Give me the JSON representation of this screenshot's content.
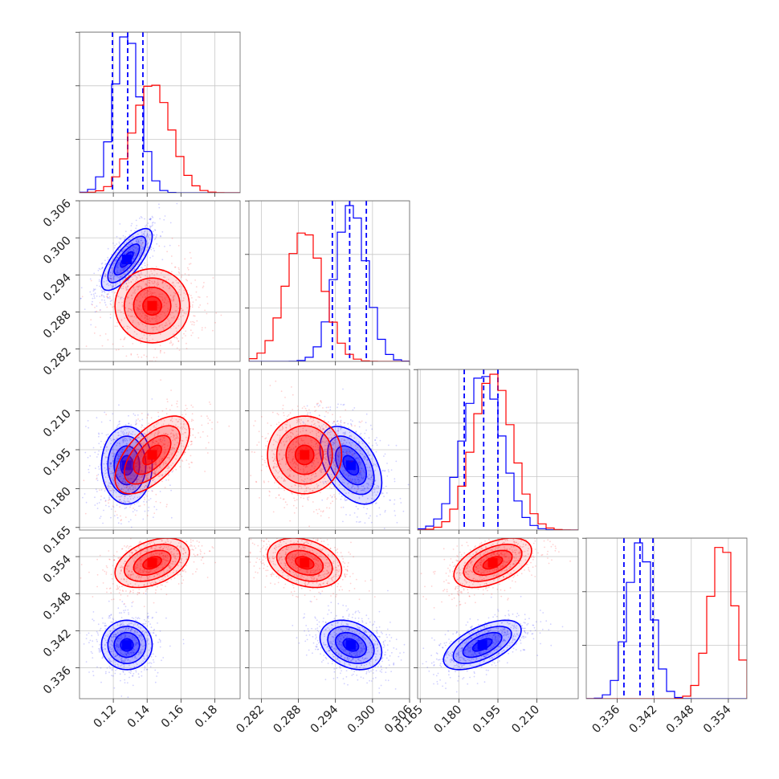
{
  "chart_data": {
    "type": "corner",
    "colors": {
      "blue": "#0000ff",
      "red": "#ff0000"
    },
    "grid": true,
    "params": [
      {
        "id": "p1",
        "range": [
          0.1,
          0.195
        ],
        "ticks": [
          "0.12",
          "0.14",
          "0.16",
          "0.18"
        ],
        "tick_values": [
          0.12,
          0.14,
          0.16,
          0.18
        ]
      },
      {
        "id": "p2",
        "range": [
          0.28,
          0.306
        ],
        "ticks": [
          "0.282",
          "0.288",
          "0.294",
          "0.300",
          "0.306"
        ],
        "tick_values": [
          0.282,
          0.288,
          0.294,
          0.3,
          0.306
        ]
      },
      {
        "id": "p3",
        "range": [
          0.164,
          0.226
        ],
        "ticks": [
          "0.165",
          "0.180",
          "0.195",
          "0.210"
        ],
        "tick_values": [
          0.165,
          0.18,
          0.195,
          0.21
        ]
      },
      {
        "id": "p4",
        "range": [
          0.331,
          0.357
        ],
        "ticks": [
          "0.336",
          "0.342",
          "0.348",
          "0.354"
        ],
        "tick_values": [
          0.336,
          0.342,
          0.348,
          0.354
        ]
      }
    ],
    "series": [
      {
        "color": "blue",
        "mean": [
          0.128,
          0.2965,
          0.189,
          0.3397
        ],
        "std": [
          0.0075,
          0.0025,
          0.0075,
          0.002
        ],
        "corr": {
          "0-1": 0.75,
          "0-2": 0.0,
          "0-3": 0.0,
          "1-2": -0.45,
          "1-3": -0.3,
          "2-3": 0.6
        },
        "quantiles": [
          [
            0.1195,
            0.1285,
            0.1375
          ],
          [
            0.2935,
            0.2963,
            0.299
          ],
          [
            0.182,
            0.1895,
            0.195
          ],
          [
            0.3371,
            0.3397,
            0.3418
          ]
        ]
      },
      {
        "color": "red",
        "mean": [
          0.143,
          0.289,
          0.193,
          0.353
        ],
        "std": [
          0.011,
          0.003,
          0.0075,
          0.002
        ],
        "corr": {
          "0-1": 0.0,
          "0-2": 0.6,
          "0-3": 0.4,
          "1-2": 0.0,
          "1-3": -0.3,
          "2-3": 0.5
        },
        "quantiles": []
      }
    ]
  }
}
